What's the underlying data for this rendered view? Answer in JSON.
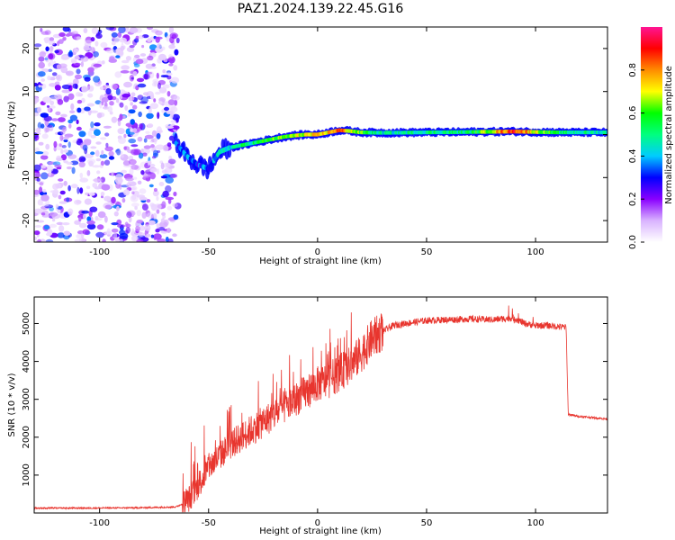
{
  "figure": {
    "title": "PAZ1.2024.139.22.45.G16"
  },
  "chart_data": [
    {
      "type": "heatmap",
      "title": "PAZ1.2024.139.22.45.G16",
      "xlabel": "Height of straight line (km)",
      "ylabel": "Frequency (Hz)",
      "xlim": [
        -130,
        133
      ],
      "ylim": [
        -25,
        25
      ],
      "x_ticks": [
        -100,
        -50,
        0,
        50,
        100
      ],
      "y_ticks": [
        -20,
        -10,
        0,
        10,
        20
      ],
      "colorbar": {
        "label": "Normalized spectral amplitude",
        "range": [
          0.0,
          1.0
        ],
        "ticks": [
          0.0,
          0.2,
          0.4,
          0.6,
          0.8
        ],
        "colormap": [
          "#ffffff",
          "#d9b3ff",
          "#8a00ff",
          "#0000ff",
          "#00ccff",
          "#00ff7f",
          "#00ff00",
          "#ffff00",
          "#ff8c00",
          "#ff0000",
          "#ff1493"
        ]
      },
      "noise_region_km": [
        -130,
        -64
      ],
      "ridge": {
        "x": [
          -65,
          -60,
          -55,
          -50,
          -45,
          -40,
          -35,
          -30,
          -25,
          -20,
          -15,
          -10,
          -5,
          0,
          5,
          10,
          15,
          20,
          30,
          50,
          70,
          90,
          110,
          133
        ],
        "freq": [
          -2,
          -5,
          -7,
          -8,
          -4,
          -3,
          -2.5,
          -2,
          -1.5,
          -1,
          -0.5,
          -0.2,
          0,
          0,
          0.5,
          1,
          0.8,
          0.5,
          0.4,
          0.5,
          0.6,
          0.7,
          0.5,
          0.5
        ],
        "amplitude": [
          0.3,
          0.35,
          0.3,
          0.35,
          0.4,
          0.45,
          0.5,
          0.5,
          0.55,
          0.6,
          0.6,
          0.65,
          0.7,
          0.7,
          0.75,
          0.85,
          0.7,
          0.6,
          0.45,
          0.5,
          0.5,
          0.9,
          0.5,
          0.45
        ]
      }
    },
    {
      "type": "line",
      "xlabel": "Height of straight line (km)",
      "ylabel": "SNR (10 * v/v)",
      "xlim": [
        -130,
        133
      ],
      "ylim": [
        0,
        5700
      ],
      "x_ticks": [
        -100,
        -50,
        0,
        50,
        100
      ],
      "y_ticks": [
        1000,
        2000,
        3000,
        4000,
        5000
      ],
      "color": "#e8352e",
      "x": [
        -130,
        -100,
        -80,
        -65,
        -60,
        -55,
        -50,
        -45,
        -40,
        -35,
        -30,
        -25,
        -20,
        -15,
        -10,
        -5,
        0,
        5,
        10,
        15,
        20,
        25,
        30,
        35,
        40,
        50,
        60,
        70,
        80,
        90,
        95,
        100,
        105,
        114,
        115,
        120,
        133
      ],
      "y": [
        130,
        130,
        140,
        160,
        300,
        700,
        1200,
        1500,
        1800,
        2000,
        2200,
        2400,
        2600,
        2800,
        3000,
        3200,
        3400,
        3500,
        3700,
        3900,
        4200,
        4600,
        4800,
        4950,
        5000,
        5080,
        5100,
        5120,
        5100,
        5150,
        5000,
        4950,
        4950,
        4900,
        2600,
        2550,
        2480
      ]
    }
  ]
}
